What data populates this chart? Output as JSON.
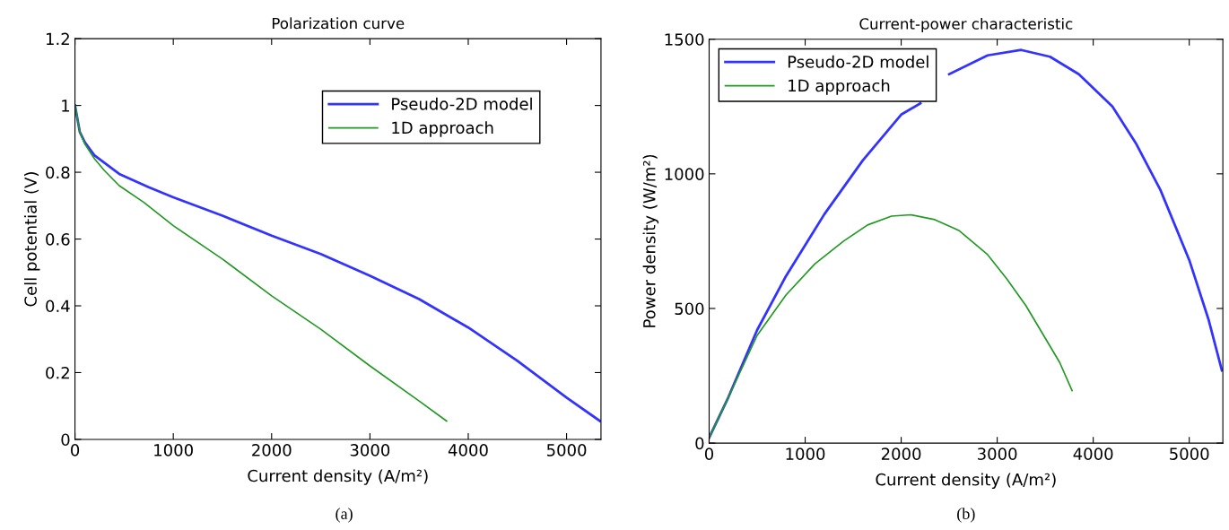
{
  "chart_data": [
    {
      "type": "line",
      "title": "Polarization curve",
      "xlabel": "Current density (A/m²)",
      "ylabel": "Cell potential (V)",
      "xlim": [
        0,
        5350
      ],
      "xticks": [
        0,
        1000,
        2000,
        3000,
        4000,
        5000
      ],
      "ylim": [
        0,
        1.2
      ],
      "yticks": [
        0,
        0.2,
        0.4,
        0.6,
        0.8,
        1,
        1.2
      ],
      "grid": false,
      "legend": "top right",
      "annotations": [
        "(a)"
      ],
      "series": [
        {
          "name": "Pseudo-2D model",
          "color": "#3333ff",
          "x": [
            0,
            50,
            100,
            200,
            450,
            750,
            1000,
            1500,
            2000,
            2500,
            3000,
            3500,
            4000,
            4500,
            5000,
            5340
          ],
          "values": [
            1.0,
            0.92,
            0.89,
            0.85,
            0.795,
            0.755,
            0.725,
            0.67,
            0.61,
            0.555,
            0.49,
            0.42,
            0.335,
            0.235,
            0.125,
            0.055
          ]
        },
        {
          "name": "1D approach",
          "color": "#229922",
          "x": [
            0,
            50,
            100,
            200,
            300,
            450,
            700,
            1000,
            1500,
            2000,
            2500,
            3000,
            3500,
            3780
          ],
          "values": [
            1.0,
            0.92,
            0.885,
            0.84,
            0.805,
            0.76,
            0.71,
            0.64,
            0.54,
            0.43,
            0.33,
            0.22,
            0.115,
            0.055
          ]
        }
      ]
    },
    {
      "type": "line",
      "title": "Current-power characteristic",
      "xlabel": "Current density (A/m²)",
      "ylabel": "Power density (W/m²)",
      "xlim": [
        0,
        5350
      ],
      "xticks": [
        0,
        1000,
        2000,
        3000,
        4000,
        5000
      ],
      "ylim": [
        0,
        1500
      ],
      "yticks": [
        0,
        500,
        1000,
        1500
      ],
      "grid": false,
      "legend": "top left",
      "annotations": [
        "(b)"
      ],
      "series": [
        {
          "name": "Pseudo-2D model",
          "color": "#3333ff",
          "x": [
            0,
            200,
            500,
            800,
            1200,
            1600,
            2000,
            2200,
            2300,
            2500,
            2900,
            3250,
            3550,
            3850,
            4200,
            4450,
            4700,
            5000,
            5200,
            5340
          ],
          "values": [
            20,
            170,
            420,
            620,
            850,
            1050,
            1220,
            1262,
            null,
            1370,
            1440,
            1460,
            1435,
            1370,
            1250,
            1110,
            940,
            680,
            460,
            270
          ]
        },
        {
          "name": "1D approach",
          "color": "#229922",
          "x": [
            0,
            200,
            500,
            800,
            1100,
            1400,
            1650,
            1900,
            2100,
            2350,
            2600,
            2900,
            3100,
            3300,
            3500,
            3650,
            3780
          ],
          "values": [
            20,
            170,
            400,
            550,
            665,
            750,
            810,
            843,
            848,
            830,
            790,
            700,
            610,
            510,
            390,
            300,
            195
          ]
        }
      ]
    }
  ]
}
